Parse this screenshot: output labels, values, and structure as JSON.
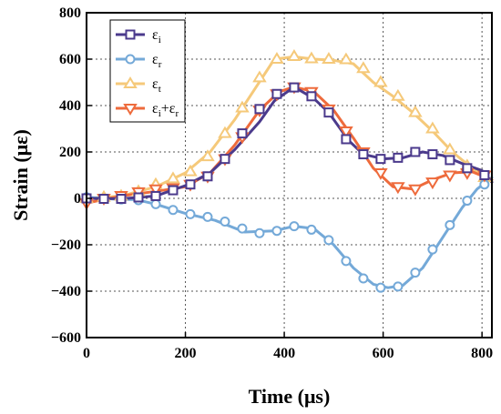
{
  "chart_data": {
    "type": "line",
    "xlabel": "Time (μs)",
    "ylabel": "Strain (με)",
    "xlim": [
      0,
      820
    ],
    "ylim": [
      -600,
      800
    ],
    "xticks": [
      0,
      200,
      400,
      600,
      800
    ],
    "yticks": [
      -600,
      -400,
      -200,
      0,
      200,
      400,
      600,
      800
    ],
    "grid": true,
    "legend_position": "top-left",
    "series": [
      {
        "name": "εi",
        "label_base": "ε",
        "label_sub": "i",
        "color": "#4b3a8c",
        "marker": "square",
        "x": [
          0,
          70,
          140,
          200,
          250,
          300,
          350,
          380,
          420,
          460,
          490,
          530,
          560,
          600,
          640,
          680,
          720,
          760,
          800,
          820
        ],
        "y": [
          0,
          -2,
          10,
          55,
          110,
          210,
          330,
          420,
          480,
          430,
          370,
          250,
          190,
          170,
          175,
          200,
          185,
          150,
          120,
          70
        ],
        "mark_x": [
          0,
          35,
          70,
          105,
          140,
          175,
          210,
          245,
          280,
          315,
          350,
          385,
          420,
          455,
          490,
          525,
          560,
          595,
          630,
          665,
          700,
          735,
          770,
          805
        ],
        "mark_y": [
          0,
          -2,
          -2,
          4,
          10,
          35,
          60,
          95,
          170,
          280,
          385,
          450,
          478,
          440,
          370,
          255,
          190,
          170,
          175,
          200,
          190,
          165,
          130,
          100
        ]
      },
      {
        "name": "εr",
        "label_base": "ε",
        "label_sub": "r",
        "color": "#74a9d8",
        "marker": "circle",
        "x": [
          0,
          70,
          100,
          140,
          200,
          260,
          320,
          380,
          420,
          460,
          500,
          540,
          580,
          610,
          640,
          680,
          720,
          760,
          790,
          820
        ],
        "y": [
          5,
          -5,
          -5,
          -25,
          -65,
          -95,
          -145,
          -140,
          -120,
          -130,
          -200,
          -300,
          -370,
          -385,
          -375,
          -300,
          -170,
          -40,
          40,
          90
        ],
        "mark_x": [
          0,
          35,
          70,
          105,
          140,
          175,
          210,
          245,
          280,
          315,
          350,
          385,
          420,
          455,
          490,
          525,
          560,
          595,
          630,
          665,
          700,
          735,
          770,
          805
        ],
        "mark_y": [
          5,
          -3,
          -5,
          -8,
          -25,
          -50,
          -68,
          -80,
          -100,
          -130,
          -150,
          -140,
          -120,
          -135,
          -180,
          -270,
          -345,
          -385,
          -380,
          -320,
          -220,
          -115,
          -10,
          60
        ]
      },
      {
        "name": "εt",
        "label_base": "ε",
        "label_sub": "t",
        "color": "#f5c97a",
        "marker": "triangle-up",
        "x": [
          0,
          70,
          140,
          200,
          250,
          300,
          340,
          380,
          420,
          460,
          500,
          540,
          580,
          620,
          660,
          700,
          740,
          780,
          820
        ],
        "y": [
          0,
          10,
          50,
          110,
          200,
          340,
          470,
          600,
          610,
          600,
          595,
          580,
          500,
          440,
          370,
          290,
          200,
          130,
          70
        ],
        "mark_x": [
          0,
          35,
          70,
          105,
          140,
          175,
          210,
          245,
          280,
          315,
          350,
          385,
          420,
          455,
          490,
          525,
          560,
          595,
          630,
          665,
          700,
          735,
          770,
          805
        ],
        "mark_y": [
          0,
          5,
          10,
          30,
          60,
          85,
          115,
          180,
          280,
          390,
          520,
          600,
          612,
          602,
          600,
          598,
          560,
          500,
          440,
          370,
          300,
          210,
          140,
          90
        ]
      },
      {
        "name": "εi+εr",
        "label_base": "ε",
        "label_sub": "i",
        "label_base2": "ε",
        "label_sub2": "r",
        "label_op": "+",
        "color": "#ee6b3c",
        "marker": "triangle-down",
        "x": [
          0,
          70,
          140,
          200,
          250,
          300,
          350,
          390,
          420,
          460,
          500,
          540,
          580,
          620,
          660,
          700,
          740,
          780,
          820
        ],
        "y": [
          -20,
          10,
          30,
          50,
          110,
          230,
          380,
          460,
          480,
          460,
          380,
          260,
          130,
          50,
          40,
          80,
          110,
          115,
          80
        ],
        "mark_x": [
          0,
          35,
          70,
          105,
          140,
          175,
          210,
          245,
          280,
          315,
          350,
          385,
          420,
          455,
          490,
          525,
          560,
          595,
          630,
          665,
          700,
          735,
          770,
          805
        ],
        "mark_y": [
          -20,
          0,
          12,
          28,
          40,
          45,
          60,
          95,
          170,
          265,
          380,
          450,
          480,
          460,
          385,
          290,
          200,
          110,
          50,
          40,
          70,
          100,
          110,
          100
        ]
      }
    ]
  }
}
